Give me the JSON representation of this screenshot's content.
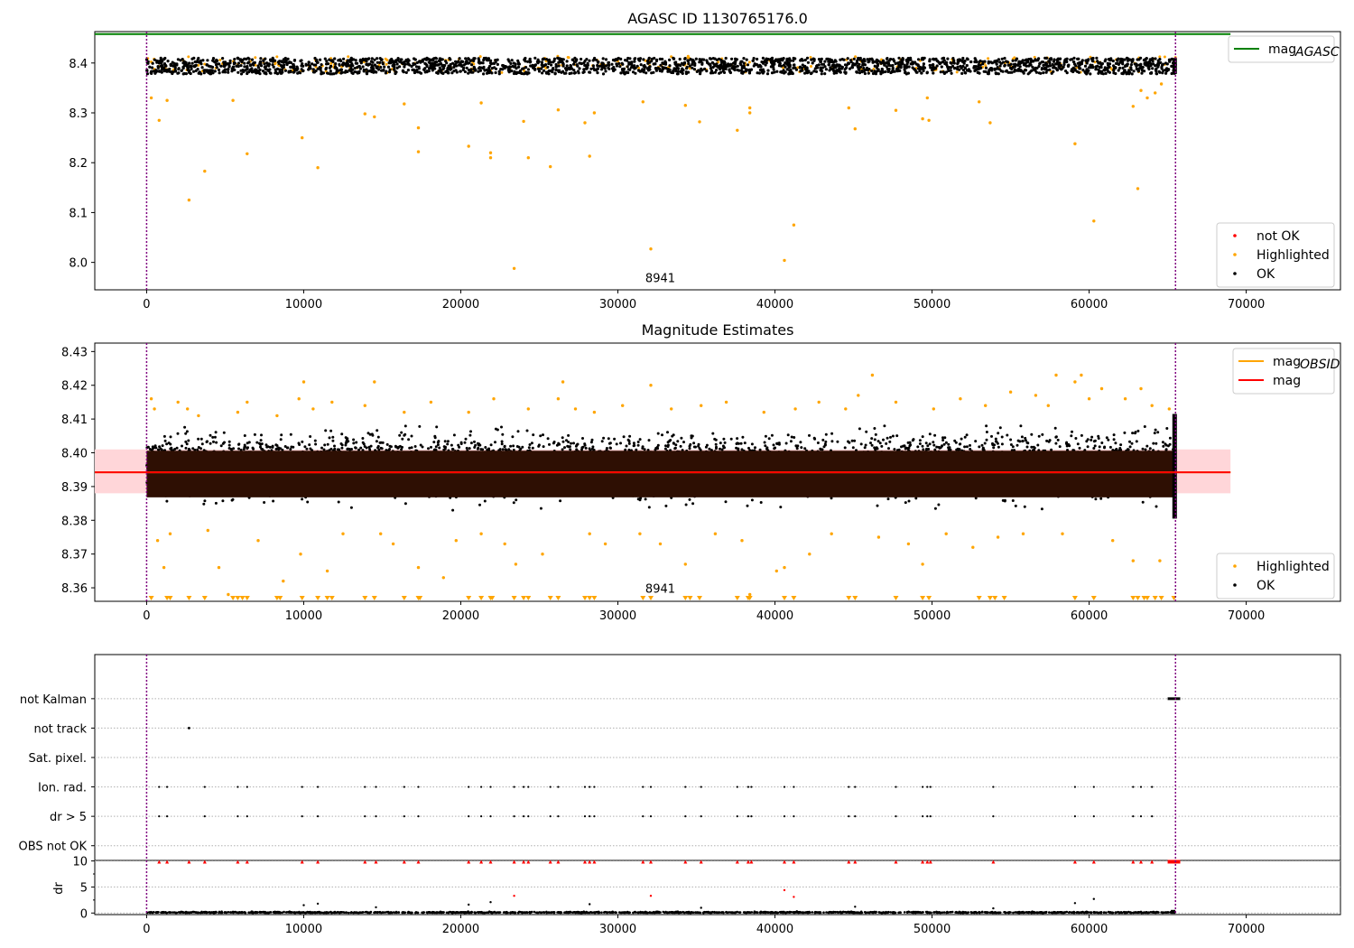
{
  "chart_data": [
    {
      "type": "scatter",
      "title": "AGASC ID 1130765176.0",
      "xlim": [
        -3300,
        76000
      ],
      "ylim": [
        7.945,
        8.463
      ],
      "x_ticks": [
        0,
        10000,
        20000,
        30000,
        40000,
        50000,
        60000,
        70000
      ],
      "y_ticks": [
        8.0,
        8.1,
        8.2,
        8.3,
        8.4
      ],
      "y_tick_decimals": 1,
      "obs_boundaries": [
        0,
        65500
      ],
      "obsid_label": {
        "text": "8941",
        "x": 32700,
        "y": 7.96
      },
      "ok_band": {
        "x_range": [
          0,
          65500
        ],
        "y_range": [
          8.378,
          8.41
        ]
      },
      "lines": [
        {
          "name": "mag",
          "subscript": "AGASC",
          "color": "#008000",
          "y": 8.458,
          "x_range": [
            -3300,
            69000
          ]
        }
      ],
      "legend_upper": "upper right",
      "legend_lower": "lower right",
      "highlighted_points": [
        [
          300,
          8.33
        ],
        [
          800,
          8.285
        ],
        [
          1300,
          8.325
        ],
        [
          2700,
          8.125
        ],
        [
          3700,
          8.183
        ],
        [
          5500,
          8.325
        ],
        [
          6400,
          8.218
        ],
        [
          9900,
          8.25
        ],
        [
          10900,
          8.19
        ],
        [
          13900,
          8.298
        ],
        [
          14500,
          8.292
        ],
        [
          16400,
          8.318
        ],
        [
          17300,
          8.27
        ],
        [
          17300,
          8.222
        ],
        [
          20500,
          8.233
        ],
        [
          21300,
          8.32
        ],
        [
          21900,
          8.22
        ],
        [
          21900,
          8.21
        ],
        [
          23400,
          7.988
        ],
        [
          24000,
          8.283
        ],
        [
          24300,
          8.21
        ],
        [
          25700,
          8.192
        ],
        [
          26200,
          8.306
        ],
        [
          27900,
          8.28
        ],
        [
          28200,
          8.213
        ],
        [
          28500,
          8.3
        ],
        [
          31600,
          8.322
        ],
        [
          32100,
          8.027
        ],
        [
          34300,
          8.315
        ],
        [
          35200,
          8.282
        ],
        [
          37600,
          8.265
        ],
        [
          38400,
          8.31
        ],
        [
          38400,
          8.3
        ],
        [
          40600,
          8.004
        ],
        [
          41200,
          8.075
        ],
        [
          44700,
          8.31
        ],
        [
          45100,
          8.268
        ],
        [
          47700,
          8.305
        ],
        [
          49400,
          8.288
        ],
        [
          49800,
          8.285
        ],
        [
          49700,
          8.33
        ],
        [
          53000,
          8.322
        ],
        [
          53700,
          8.28
        ],
        [
          59100,
          8.238
        ],
        [
          60300,
          8.083
        ],
        [
          62800,
          8.313
        ],
        [
          63100,
          8.148
        ],
        [
          63300,
          8.345
        ],
        [
          63700,
          8.33
        ],
        [
          64200,
          8.34
        ],
        [
          64600,
          8.358
        ]
      ]
    },
    {
      "type": "scatter",
      "title": "Magnitude Estimates",
      "xlim": [
        -3300,
        76000
      ],
      "ylim": [
        8.356,
        8.4325
      ],
      "x_ticks": [
        0,
        10000,
        20000,
        30000,
        40000,
        50000,
        60000,
        70000
      ],
      "y_ticks": [
        8.36,
        8.37,
        8.38,
        8.39,
        8.4,
        8.41,
        8.42,
        8.43
      ],
      "y_tick_decimals": 2,
      "obs_boundaries": [
        0,
        65500
      ],
      "obsid_label": {
        "text": "8941",
        "x": 32700,
        "y": 8.3585
      },
      "dense_band": {
        "x_range": [
          0,
          65500
        ],
        "y_range": [
          8.3868,
          8.4006
        ]
      },
      "ok_range": {
        "x_range": [
          0,
          65500
        ],
        "y_range": [
          8.3805,
          8.4115
        ]
      },
      "shaded_band": {
        "x_range": [
          -3300,
          69000
        ],
        "y_range": [
          8.388,
          8.401
        ]
      },
      "lines": [
        {
          "name": "mag",
          "subscript": "OBSID",
          "color": "#ffa500",
          "y": 8.3942,
          "x_range": [
            -3300,
            69000
          ]
        },
        {
          "name": "mag",
          "subscript": "",
          "color": "#ff0000",
          "y": 8.3942,
          "x_range": [
            -3300,
            69000
          ]
        }
      ],
      "legend_upper": "upper right",
      "legend_lower": "lower right",
      "highlighted_points": [
        [
          300,
          8.416
        ],
        [
          500,
          8.413
        ],
        [
          700,
          8.374
        ],
        [
          1100,
          8.366
        ],
        [
          1500,
          8.376
        ],
        [
          2000,
          8.415
        ],
        [
          2600,
          8.413
        ],
        [
          3300,
          8.411
        ],
        [
          3900,
          8.377
        ],
        [
          4600,
          8.366
        ],
        [
          5200,
          8.358
        ],
        [
          5800,
          8.412
        ],
        [
          6400,
          8.415
        ],
        [
          7100,
          8.374
        ],
        [
          8300,
          8.411
        ],
        [
          8700,
          8.362
        ],
        [
          9700,
          8.416
        ],
        [
          9800,
          8.37
        ],
        [
          10000,
          8.421
        ],
        [
          10600,
          8.413
        ],
        [
          11500,
          8.365
        ],
        [
          11800,
          8.415
        ],
        [
          12500,
          8.376
        ],
        [
          13900,
          8.414
        ],
        [
          14500,
          8.421
        ],
        [
          14900,
          8.376
        ],
        [
          15700,
          8.373
        ],
        [
          16400,
          8.412
        ],
        [
          17300,
          8.366
        ],
        [
          18100,
          8.415
        ],
        [
          18900,
          8.363
        ],
        [
          19700,
          8.374
        ],
        [
          20500,
          8.412
        ],
        [
          21300,
          8.376
        ],
        [
          22100,
          8.416
        ],
        [
          22800,
          8.373
        ],
        [
          23500,
          8.367
        ],
        [
          24300,
          8.413
        ],
        [
          25200,
          8.37
        ],
        [
          26200,
          8.416
        ],
        [
          26500,
          8.421
        ],
        [
          27300,
          8.413
        ],
        [
          28200,
          8.376
        ],
        [
          28500,
          8.412
        ],
        [
          29200,
          8.373
        ],
        [
          30300,
          8.414
        ],
        [
          31400,
          8.376
        ],
        [
          32100,
          8.42
        ],
        [
          32700,
          8.373
        ],
        [
          33400,
          8.413
        ],
        [
          34300,
          8.367
        ],
        [
          35300,
          8.414
        ],
        [
          36200,
          8.376
        ],
        [
          36900,
          8.415
        ],
        [
          37900,
          8.374
        ],
        [
          38400,
          8.358
        ],
        [
          39300,
          8.412
        ],
        [
          40100,
          8.365
        ],
        [
          40600,
          8.366
        ],
        [
          41300,
          8.413
        ],
        [
          42200,
          8.37
        ],
        [
          42800,
          8.415
        ],
        [
          43600,
          8.376
        ],
        [
          44500,
          8.413
        ],
        [
          45300,
          8.417
        ],
        [
          46200,
          8.423
        ],
        [
          46600,
          8.375
        ],
        [
          47700,
          8.415
        ],
        [
          48500,
          8.373
        ],
        [
          49400,
          8.367
        ],
        [
          50100,
          8.413
        ],
        [
          50900,
          8.376
        ],
        [
          51800,
          8.416
        ],
        [
          52600,
          8.372
        ],
        [
          53400,
          8.414
        ],
        [
          54200,
          8.375
        ],
        [
          55000,
          8.418
        ],
        [
          55800,
          8.376
        ],
        [
          56600,
          8.417
        ],
        [
          57400,
          8.414
        ],
        [
          57900,
          8.423
        ],
        [
          58300,
          8.376
        ],
        [
          59100,
          8.421
        ],
        [
          59500,
          8.423
        ],
        [
          60000,
          8.416
        ],
        [
          60800,
          8.419
        ],
        [
          61500,
          8.374
        ],
        [
          62300,
          8.416
        ],
        [
          62800,
          8.368
        ],
        [
          63300,
          8.419
        ],
        [
          64000,
          8.414
        ],
        [
          64500,
          8.368
        ],
        [
          65100,
          8.413
        ]
      ],
      "clipped_low_marker_x": [
        300,
        1300,
        1500,
        2700,
        3700,
        5500,
        5800,
        6100,
        6400,
        8300,
        8500,
        9900,
        10900,
        11500,
        11800,
        13900,
        14500,
        16400,
        17300,
        17400,
        20500,
        21300,
        21900,
        22000,
        23400,
        24000,
        24300,
        25700,
        26200,
        27900,
        28200,
        28500,
        31600,
        32100,
        34300,
        34600,
        35200,
        37600,
        38300,
        38400,
        40600,
        41200,
        44700,
        45100,
        47700,
        49400,
        49800,
        53000,
        53700,
        54000,
        54600,
        59100,
        60300,
        62800,
        63100,
        63500,
        63700,
        64200,
        64600,
        65400
      ]
    },
    {
      "type": "scatter",
      "title": "",
      "xlim": [
        -3300,
        76000
      ],
      "ylim": [
        -0.5,
        6.5
      ],
      "x_ticks": [
        0,
        10000,
        20000,
        30000,
        40000,
        50000,
        60000,
        70000
      ],
      "flag_labels": [
        "OBS not OK",
        "dr > 5",
        "Ion. rad.",
        "Sat. pixel.",
        "not track",
        "not Kalman"
      ],
      "obs_boundaries": [
        0,
        65500
      ],
      "flag_points": {
        "dr > 5": [
          800,
          1300,
          3700,
          5800,
          6400,
          9900,
          10900,
          13900,
          14600,
          16400,
          17300,
          20500,
          21300,
          21900,
          23400,
          24000,
          24300,
          25700,
          26200,
          27900,
          28200,
          28500,
          31600,
          32100,
          34300,
          35300,
          37600,
          38300,
          38500,
          40600,
          41200,
          44700,
          45100,
          47700,
          49400,
          49700,
          49900,
          53900,
          59100,
          60300,
          62800,
          63300,
          64000
        ],
        "Ion. rad.": [
          800,
          1300,
          3700,
          5800,
          6400,
          9900,
          10900,
          13900,
          14600,
          16400,
          17300,
          20500,
          21300,
          21900,
          23400,
          24000,
          24300,
          25700,
          26200,
          27900,
          28200,
          28500,
          31600,
          32100,
          34300,
          35300,
          37600,
          38300,
          38500,
          40600,
          41200,
          44700,
          45100,
          47700,
          49400,
          49700,
          49900,
          53900,
          59100,
          60300,
          62800,
          63300,
          64000
        ],
        "not track": [
          2700
        ],
        "not Kalman_range": [
          65000,
          65800
        ]
      }
    },
    {
      "type": "scatter",
      "title": "",
      "ylabel": "dr",
      "xlim": [
        -3300,
        76000
      ],
      "ylim": [
        -0.3,
        10.1
      ],
      "x_ticks": [
        0,
        10000,
        20000,
        30000,
        40000,
        50000,
        60000,
        70000
      ],
      "y_ticks": [
        0,
        5,
        10
      ],
      "obs_boundaries": [
        0,
        65500
      ],
      "red_points_at_10": [
        800,
        1300,
        2700,
        3700,
        5800,
        6400,
        9900,
        10900,
        13900,
        14600,
        16400,
        17300,
        20500,
        21300,
        21900,
        23400,
        24000,
        24300,
        25700,
        26200,
        27900,
        28200,
        28500,
        31600,
        32100,
        34300,
        35300,
        37600,
        38300,
        38500,
        40600,
        41200,
        44700,
        45100,
        47700,
        49400,
        49700,
        49900,
        53900,
        59100,
        60300,
        62800,
        63300,
        64000
      ],
      "red_points": [
        [
          23400,
          3.3
        ],
        [
          32100,
          3.3
        ],
        [
          40600,
          4.4
        ],
        [
          41200,
          3.1
        ]
      ],
      "black_points": [
        [
          10000,
          1.5
        ],
        [
          10900,
          1.8
        ],
        [
          20500,
          1.6
        ],
        [
          21900,
          2.1
        ],
        [
          28200,
          1.7
        ],
        [
          59100,
          1.9
        ],
        [
          60300,
          2.7
        ],
        [
          14600,
          1.1
        ],
        [
          35300,
          1.0
        ],
        [
          45100,
          1.2
        ],
        [
          53900,
          0.9
        ]
      ]
    }
  ],
  "colors": {
    "ok": "#000000",
    "highlighted": "#ffa500",
    "not_ok": "#ff0000",
    "boundary": "#800080",
    "shade": "#ffd6d9",
    "dense": "#2e0f03"
  },
  "legends": {
    "top_upper": [
      {
        "label": "mag",
        "sub": "AGASC",
        "color": "#008000",
        "kind": "line"
      }
    ],
    "top_lower": [
      {
        "label": "not OK",
        "color": "#ff0000",
        "kind": "dot"
      },
      {
        "label": "Highlighted",
        "color": "#ffa500",
        "kind": "dot"
      },
      {
        "label": "OK",
        "color": "#000000",
        "kind": "dot"
      }
    ],
    "mid_upper": [
      {
        "label": "mag",
        "sub": "OBSID",
        "color": "#ffa500",
        "kind": "line"
      },
      {
        "label": "mag",
        "sub": "",
        "color": "#ff0000",
        "kind": "line"
      }
    ],
    "mid_lower": [
      {
        "label": "Highlighted",
        "color": "#ffa500",
        "kind": "dot"
      },
      {
        "label": "OK",
        "color": "#000000",
        "kind": "dot"
      }
    ]
  }
}
